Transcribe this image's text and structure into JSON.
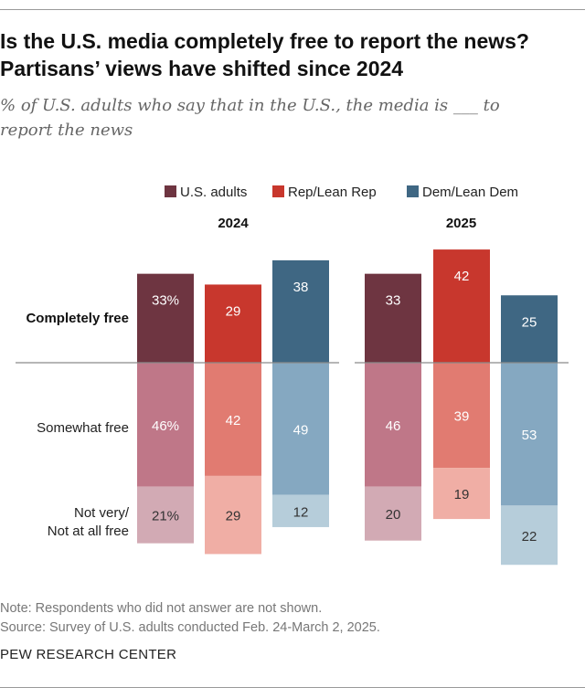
{
  "header": {
    "title": "Is the U.S. media completely free to report the news? Partisans’ views have shifted since 2024",
    "subtitle": "% of U.S. adults who say that in the U.S., the media is ___ to report the news"
  },
  "chart_data": {
    "type": "bar",
    "variant": "diverging-stacked",
    "groups": [
      "2024",
      "2025"
    ],
    "categories": [
      "Completely free",
      "Somewhat free",
      "Not very/ Not at all free"
    ],
    "series": [
      {
        "name": "U.S. adults",
        "values": {
          "2024": [
            33,
            46,
            21
          ],
          "2025": [
            33,
            46,
            20
          ]
        },
        "labels": {
          "2024": [
            "33%",
            "46%",
            "21%"
          ],
          "2025": [
            "33",
            "46",
            "20"
          ]
        }
      },
      {
        "name": "Rep/Lean Rep",
        "values": {
          "2024": [
            29,
            42,
            29
          ],
          "2025": [
            42,
            39,
            19
          ]
        },
        "labels": {
          "2024": [
            "29",
            "42",
            "29"
          ],
          "2025": [
            "42",
            "39",
            "19"
          ]
        }
      },
      {
        "name": "Dem/Lean Dem",
        "values": {
          "2024": [
            38,
            49,
            12
          ],
          "2025": [
            25,
            53,
            22
          ]
        },
        "labels": {
          "2024": [
            "38",
            "49",
            "12"
          ],
          "2025": [
            "25",
            "53",
            "22"
          ]
        }
      }
    ],
    "category_labels": [
      "Completely free",
      "Somewhat free",
      "Not very/",
      "Not at all free"
    ],
    "legend_position": "top",
    "colors": {
      "U.S. adults": [
        "#6e3541",
        "#bf7788",
        "#d2aab4"
      ],
      "Rep/Lean Rep": [
        "#c8372d",
        "#e17b71",
        "#f0aea5"
      ],
      "Dem/Lean Dem": [
        "#3f6783",
        "#85a8c1",
        "#b6cdda"
      ]
    },
    "label_colors": [
      "#ffffff",
      "#ffffff",
      "#333333"
    ]
  },
  "footer": {
    "note": "Note: Respondents who did not answer are not shown.",
    "source": "Source: Survey of U.S. adults conducted Feb. 24-March 2, 2025.",
    "org": "PEW RESEARCH CENTER"
  }
}
